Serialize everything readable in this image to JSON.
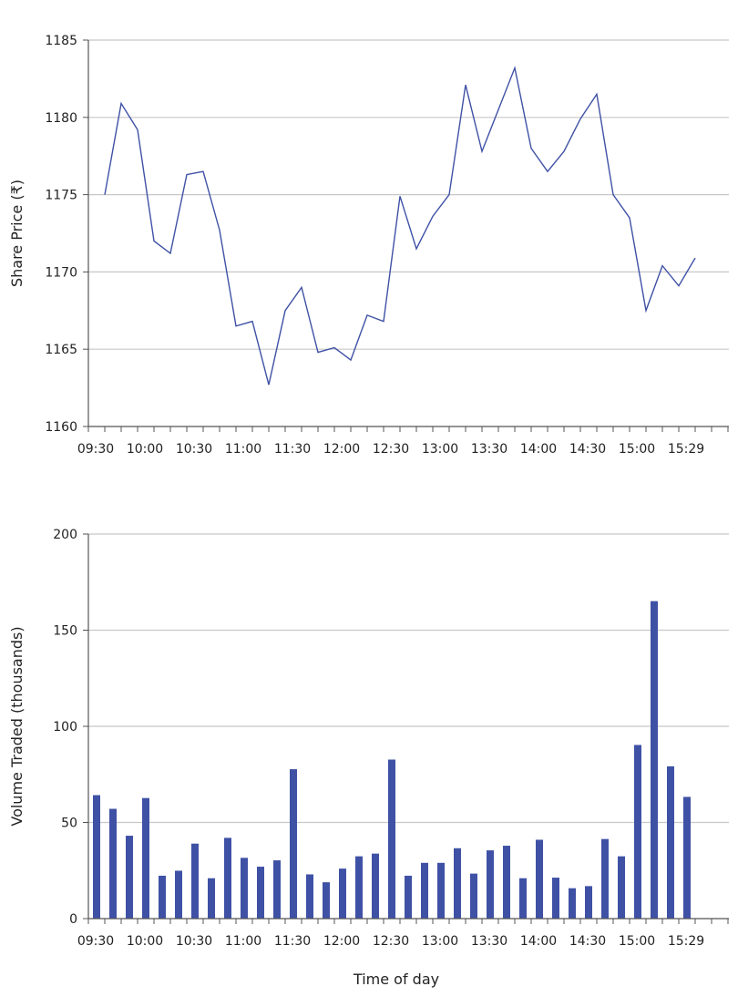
{
  "colors": {
    "series": "#3f51a5",
    "grid": "#c8c8c8",
    "axis": "#555555"
  },
  "chart_data": [
    {
      "type": "line",
      "xlabel": "",
      "ylabel": "Share Price (₹)",
      "ylim": [
        1160,
        1185
      ],
      "yticks": [
        1160,
        1165,
        1170,
        1175,
        1180,
        1185
      ],
      "grid": "horizontal",
      "x_tick_labels": [
        "09:30",
        "10:00",
        "10:30",
        "11:00",
        "11:30",
        "12:00",
        "12:30",
        "13:00",
        "13:30",
        "14:00",
        "14:30",
        "15:00",
        "15:29"
      ],
      "values": [
        1175.0,
        1180.9,
        1179.2,
        1172.0,
        1171.2,
        1176.3,
        1176.5,
        1172.7,
        1166.5,
        1166.8,
        1162.7,
        1167.5,
        1169.0,
        1164.8,
        1165.1,
        1164.3,
        1167.2,
        1166.8,
        1174.9,
        1171.5,
        1173.6,
        1175.0,
        1182.1,
        1177.8,
        1180.5,
        1183.2,
        1178.0,
        1176.5,
        1177.8,
        1179.9,
        1181.5,
        1175.0,
        1173.5,
        1167.5,
        1170.4,
        1169.1,
        1170.9
      ]
    },
    {
      "type": "bar",
      "xlabel": "Time of day",
      "ylabel": "Volume Traded (thousands)",
      "ylim": [
        0,
        200
      ],
      "yticks": [
        0,
        50,
        100,
        150,
        200
      ],
      "grid": "horizontal",
      "x_tick_labels": [
        "09:30",
        "10:00",
        "10:30",
        "11:00",
        "11:30",
        "12:00",
        "12:30",
        "13:00",
        "13:30",
        "14:00",
        "14:30",
        "15:00",
        "15:29"
      ],
      "values": [
        64.2,
        57.1,
        43.1,
        62.7,
        22.3,
        24.9,
        39.0,
        21.0,
        42.0,
        31.6,
        27.0,
        30.3,
        77.7,
        23.0,
        18.9,
        26.0,
        32.4,
        33.8,
        82.7,
        22.3,
        29.0,
        29.0,
        36.6,
        23.4,
        35.5,
        37.9,
        21.0,
        41.0,
        21.3,
        15.8,
        16.9,
        41.4,
        32.4,
        90.3,
        165.1,
        79.2,
        63.3
      ]
    }
  ]
}
